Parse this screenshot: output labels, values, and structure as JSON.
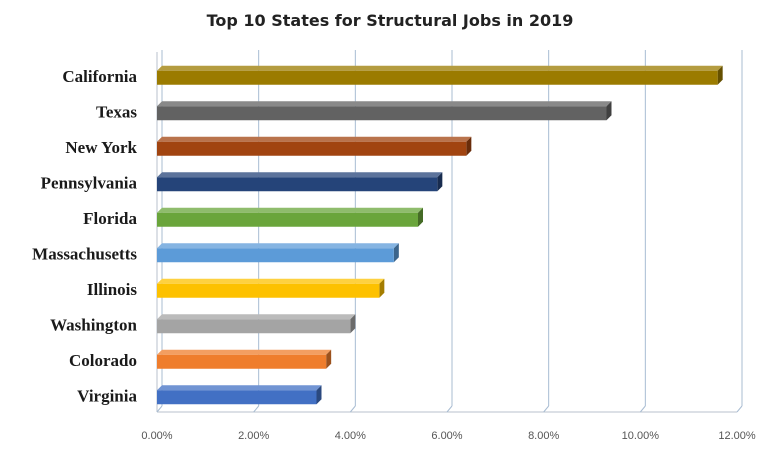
{
  "chart_data": {
    "type": "bar",
    "orientation": "horizontal",
    "title": "Top 10 States for Structural Jobs in 2019",
    "xlabel": "",
    "ylabel": "",
    "xlim": [
      0,
      12
    ],
    "x_ticks": [
      0,
      2,
      4,
      6,
      8,
      10,
      12
    ],
    "x_tick_labels": [
      "0.00%",
      "2.00%",
      "4.00%",
      "6.00%",
      "8.00%",
      "10.00%",
      "12.00%"
    ],
    "grid": true,
    "legend": "none",
    "categories": [
      "California",
      "Texas",
      "New York",
      "Pennsylvania",
      "Florida",
      "Massachusetts",
      "Illinois",
      "Washington",
      "Colorado",
      "Virginia"
    ],
    "values": [
      11.6,
      9.3,
      6.4,
      5.8,
      5.4,
      4.9,
      4.6,
      4.0,
      3.5,
      3.3
    ],
    "colors": [
      "#9b7b00",
      "#626262",
      "#a14410",
      "#254479",
      "#6aa53b",
      "#5c9bd8",
      "#fdc100",
      "#a4a4a4",
      "#ef7d2c",
      "#4270c4"
    ]
  }
}
